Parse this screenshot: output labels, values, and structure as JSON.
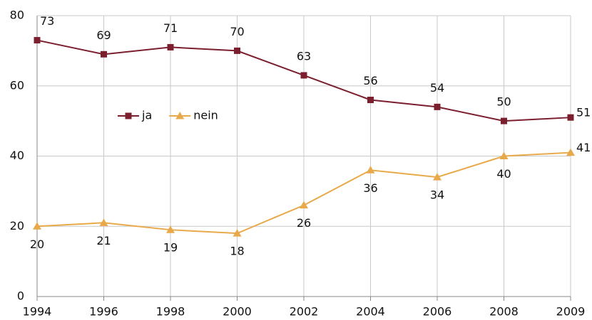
{
  "chart_data": {
    "type": "line",
    "categories": [
      "1994",
      "1996",
      "1998",
      "2000",
      "2002",
      "2004",
      "2006",
      "2008",
      "2009"
    ],
    "series": [
      {
        "name": "ja",
        "color": "#7b1f2e",
        "marker": "square",
        "values": [
          73,
          69,
          71,
          70,
          63,
          56,
          54,
          50,
          51
        ]
      },
      {
        "name": "nein",
        "color": "#e8a94a",
        "marker": "triangle",
        "values": [
          20,
          21,
          19,
          18,
          26,
          36,
          34,
          40,
          41
        ]
      }
    ],
    "ylim": [
      0,
      80
    ],
    "yticks": [
      0,
      20,
      40,
      60,
      80
    ],
    "grid": true
  }
}
